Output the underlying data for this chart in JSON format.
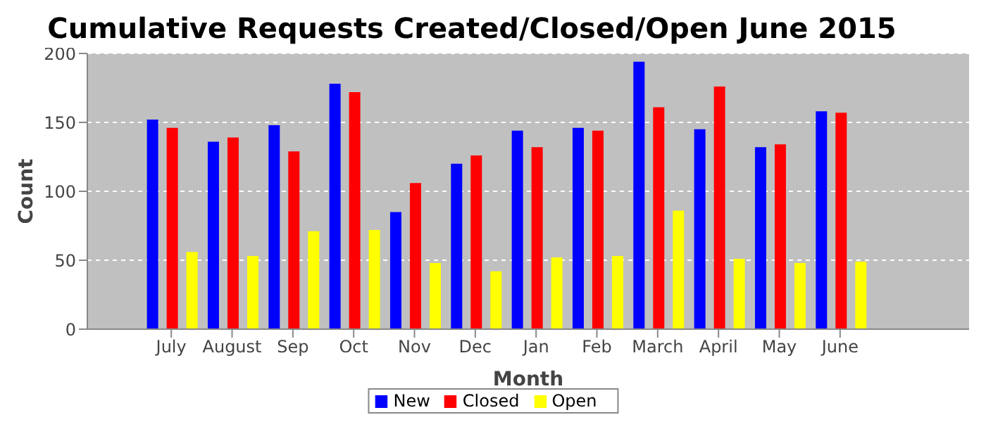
{
  "chart_data": {
    "type": "bar",
    "title": "Cumulative Requests Created/Closed/Open June 2015",
    "xlabel": "Month",
    "ylabel": "Count",
    "categories": [
      "July",
      "August",
      "Sep",
      "Oct",
      "Nov",
      "Dec",
      "Jan",
      "Feb",
      "March",
      "April",
      "May",
      "June"
    ],
    "series": [
      {
        "name": "New",
        "color": "#0000ff",
        "values": [
          152,
          136,
          148,
          178,
          85,
          120,
          144,
          146,
          194,
          145,
          132,
          158
        ]
      },
      {
        "name": "Closed",
        "color": "#ff0000",
        "values": [
          146,
          139,
          129,
          172,
          106,
          126,
          132,
          144,
          161,
          176,
          134,
          157
        ]
      },
      {
        "name": "Open",
        "color": "#ffff00",
        "values": [
          56,
          53,
          71,
          72,
          48,
          42,
          52,
          53,
          86,
          51,
          48,
          49
        ]
      }
    ],
    "ylim": [
      0,
      200
    ],
    "yticks": [
      0,
      50,
      100,
      150,
      200
    ],
    "grid": "y",
    "legend": "bottom"
  }
}
